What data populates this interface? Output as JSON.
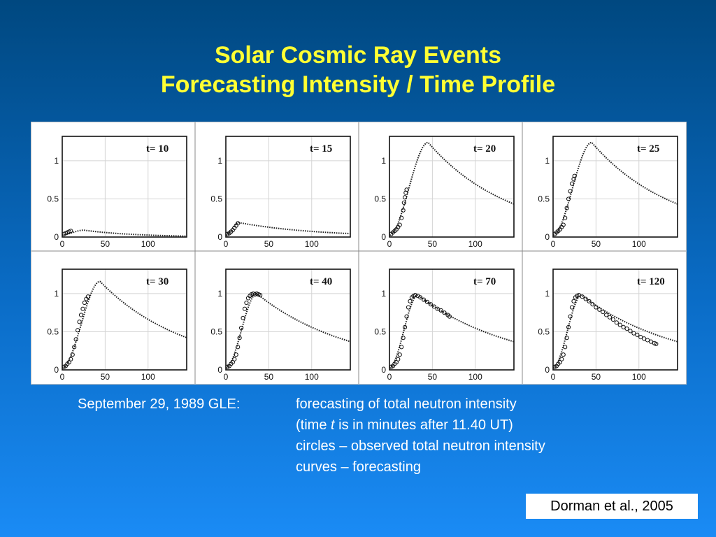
{
  "slide": {
    "title_line1": "Solar Cosmic Ray Events",
    "title_line2": "Forecasting Intensity / Time Profile",
    "caption": {
      "lead": "September 29, 1989 GLE:",
      "line1": "forecasting of total neutron intensity",
      "line2_prefix": "(time ",
      "line2_var": "t",
      "line2_suffix": " is in minutes after 11.40 UT)",
      "line3": "circles – observed total neutron intensity",
      "line4": "curves – forecasting"
    },
    "citation": "Dorman et al., 2005",
    "colors": {
      "title": "#ffff33",
      "text": "#ffffff",
      "curve": "#222222"
    }
  },
  "chart_data": [
    {
      "type": "line",
      "panel_label": "t=",
      "t": 10,
      "peak_time": 25,
      "peak_value": 0.09,
      "decay_tau": 60,
      "observed": [
        [
          2,
          0.04
        ],
        [
          4,
          0.05
        ],
        [
          6,
          0.06
        ],
        [
          8,
          0.07
        ],
        [
          10,
          0.08
        ]
      ],
      "xlim": [
        0,
        145
      ],
      "ylim": [
        0,
        1.32
      ],
      "xticks": [
        0,
        50,
        100
      ],
      "yticks": [
        0,
        0.5,
        1
      ],
      "grid": true
    },
    {
      "type": "line",
      "panel_label": "t=",
      "t": 15,
      "peak_time": 15,
      "peak_value": 0.19,
      "decay_tau": 90,
      "observed": [
        [
          2,
          0.04
        ],
        [
          4,
          0.05
        ],
        [
          6,
          0.07
        ],
        [
          8,
          0.09
        ],
        [
          10,
          0.12
        ],
        [
          12,
          0.15
        ],
        [
          14,
          0.18
        ]
      ],
      "xlim": [
        0,
        145
      ],
      "ylim": [
        0,
        1.32
      ],
      "xticks": [
        0,
        50,
        100
      ],
      "yticks": [
        0,
        0.5,
        1
      ],
      "grid": true
    },
    {
      "type": "line",
      "panel_label": "t=",
      "t": 20,
      "peak_time": 45,
      "peak_value": 1.24,
      "decay_tau": 95,
      "observed": [
        [
          2,
          0.04
        ],
        [
          4,
          0.06
        ],
        [
          6,
          0.08
        ],
        [
          8,
          0.1
        ],
        [
          10,
          0.13
        ],
        [
          12,
          0.16
        ],
        [
          14,
          0.25
        ],
        [
          16,
          0.35
        ],
        [
          17,
          0.45
        ],
        [
          18,
          0.52
        ],
        [
          19,
          0.58
        ],
        [
          20,
          0.62
        ]
      ],
      "xlim": [
        0,
        145
      ],
      "ylim": [
        0,
        1.32
      ],
      "xticks": [
        0,
        50,
        100
      ],
      "yticks": [
        0,
        0.5,
        1
      ],
      "grid": true
    },
    {
      "type": "line",
      "panel_label": "t=",
      "t": 25,
      "peak_time": 45,
      "peak_value": 1.24,
      "decay_tau": 95,
      "observed": [
        [
          2,
          0.04
        ],
        [
          4,
          0.06
        ],
        [
          6,
          0.08
        ],
        [
          8,
          0.1
        ],
        [
          10,
          0.13
        ],
        [
          12,
          0.16
        ],
        [
          14,
          0.25
        ],
        [
          16,
          0.38
        ],
        [
          18,
          0.5
        ],
        [
          20,
          0.6
        ],
        [
          22,
          0.7
        ],
        [
          24,
          0.76
        ],
        [
          25,
          0.8
        ]
      ],
      "xlim": [
        0,
        145
      ],
      "ylim": [
        0,
        1.32
      ],
      "xticks": [
        0,
        50,
        100
      ],
      "yticks": [
        0,
        0.5,
        1
      ],
      "grid": true
    },
    {
      "type": "line",
      "panel_label": "t=",
      "t": 30,
      "peak_time": 44,
      "peak_value": 1.16,
      "decay_tau": 100,
      "observed": [
        [
          2,
          0.04
        ],
        [
          4,
          0.05
        ],
        [
          6,
          0.08
        ],
        [
          8,
          0.1
        ],
        [
          10,
          0.14
        ],
        [
          12,
          0.2
        ],
        [
          14,
          0.3
        ],
        [
          16,
          0.4
        ],
        [
          18,
          0.52
        ],
        [
          20,
          0.63
        ],
        [
          22,
          0.72
        ],
        [
          24,
          0.8
        ],
        [
          26,
          0.88
        ],
        [
          28,
          0.93
        ],
        [
          30,
          0.96
        ]
      ],
      "xlim": [
        0,
        145
      ],
      "ylim": [
        0,
        1.32
      ],
      "xticks": [
        0,
        50,
        100
      ],
      "yticks": [
        0,
        0.5,
        1
      ],
      "grid": true
    },
    {
      "type": "line",
      "panel_label": "t=",
      "t": 40,
      "peak_time": 36,
      "peak_value": 1.0,
      "decay_tau": 110,
      "observed": [
        [
          2,
          0.04
        ],
        [
          4,
          0.05
        ],
        [
          6,
          0.08
        ],
        [
          8,
          0.1
        ],
        [
          10,
          0.14
        ],
        [
          12,
          0.2
        ],
        [
          14,
          0.3
        ],
        [
          16,
          0.42
        ],
        [
          18,
          0.55
        ],
        [
          20,
          0.68
        ],
        [
          22,
          0.8
        ],
        [
          24,
          0.88
        ],
        [
          26,
          0.94
        ],
        [
          28,
          0.97
        ],
        [
          30,
          0.99
        ],
        [
          32,
          1.0
        ],
        [
          34,
          0.99
        ],
        [
          36,
          1.0
        ],
        [
          38,
          0.99
        ],
        [
          40,
          0.98
        ]
      ],
      "xlim": [
        0,
        145
      ],
      "ylim": [
        0,
        1.32
      ],
      "xticks": [
        0,
        50,
        100
      ],
      "yticks": [
        0,
        0.5,
        1
      ],
      "grid": true
    },
    {
      "type": "line",
      "panel_label": "t=",
      "t": 70,
      "peak_time": 33,
      "peak_value": 0.98,
      "decay_tau": 115,
      "observed": [
        [
          2,
          0.04
        ],
        [
          4,
          0.05
        ],
        [
          6,
          0.08
        ],
        [
          8,
          0.1
        ],
        [
          10,
          0.14
        ],
        [
          12,
          0.2
        ],
        [
          14,
          0.3
        ],
        [
          16,
          0.42
        ],
        [
          18,
          0.56
        ],
        [
          20,
          0.7
        ],
        [
          22,
          0.82
        ],
        [
          24,
          0.9
        ],
        [
          26,
          0.95
        ],
        [
          28,
          0.97
        ],
        [
          30,
          0.98
        ],
        [
          33,
          0.97
        ],
        [
          36,
          0.95
        ],
        [
          40,
          0.92
        ],
        [
          44,
          0.89
        ],
        [
          48,
          0.86
        ],
        [
          52,
          0.83
        ],
        [
          56,
          0.8
        ],
        [
          60,
          0.78
        ],
        [
          64,
          0.75
        ],
        [
          68,
          0.72
        ],
        [
          70,
          0.7
        ]
      ],
      "xlim": [
        0,
        145
      ],
      "ylim": [
        0,
        1.32
      ],
      "xticks": [
        0,
        50,
        100
      ],
      "yticks": [
        0,
        0.5,
        1
      ],
      "grid": true
    },
    {
      "type": "line",
      "panel_label": "t=",
      "t": 120,
      "peak_time": 33,
      "peak_value": 0.98,
      "decay_tau": 115,
      "observed": [
        [
          2,
          0.04
        ],
        [
          4,
          0.05
        ],
        [
          6,
          0.08
        ],
        [
          8,
          0.1
        ],
        [
          10,
          0.14
        ],
        [
          12,
          0.2
        ],
        [
          14,
          0.3
        ],
        [
          16,
          0.42
        ],
        [
          18,
          0.56
        ],
        [
          20,
          0.7
        ],
        [
          22,
          0.82
        ],
        [
          24,
          0.9
        ],
        [
          26,
          0.95
        ],
        [
          28,
          0.97
        ],
        [
          30,
          0.98
        ],
        [
          34,
          0.96
        ],
        [
          38,
          0.93
        ],
        [
          42,
          0.9
        ],
        [
          46,
          0.86
        ],
        [
          50,
          0.82
        ],
        [
          54,
          0.79
        ],
        [
          58,
          0.76
        ],
        [
          62,
          0.72
        ],
        [
          66,
          0.69
        ],
        [
          70,
          0.66
        ],
        [
          74,
          0.62
        ],
        [
          78,
          0.59
        ],
        [
          82,
          0.56
        ],
        [
          86,
          0.54
        ],
        [
          90,
          0.51
        ],
        [
          94,
          0.48
        ],
        [
          98,
          0.46
        ],
        [
          102,
          0.43
        ],
        [
          106,
          0.41
        ],
        [
          110,
          0.39
        ],
        [
          114,
          0.37
        ],
        [
          118,
          0.35
        ],
        [
          120,
          0.34
        ]
      ],
      "xlim": [
        0,
        145
      ],
      "ylim": [
        0,
        1.32
      ],
      "xticks": [
        0,
        50,
        100
      ],
      "yticks": [
        0,
        0.5,
        1
      ],
      "grid": true
    }
  ]
}
